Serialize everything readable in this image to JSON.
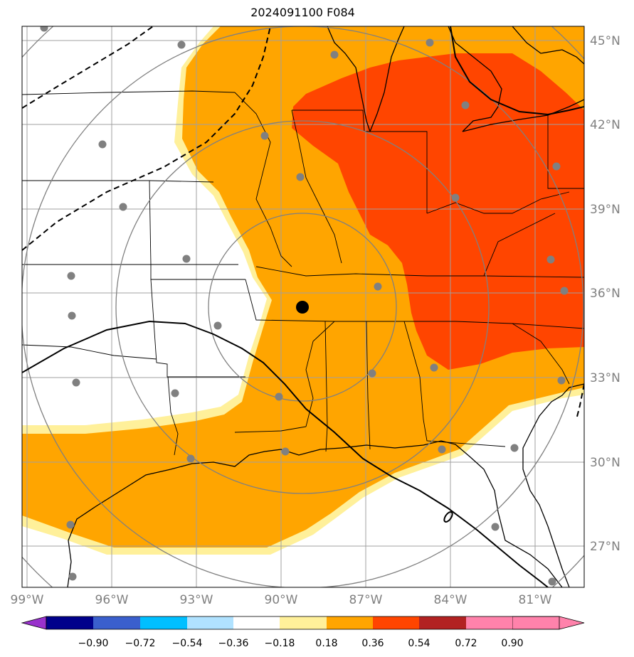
{
  "title": "2024091100 F084",
  "lat_labels": [
    "45°N",
    "42°N",
    "39°N",
    "36°N",
    "33°N",
    "30°N",
    "27°N"
  ],
  "lon_labels": [
    "99°W",
    "96°W",
    "93°W",
    "90°W",
    "87°W",
    "84°W",
    "81°W"
  ],
  "colorbar": {
    "tick_labels": [
      "−0.90",
      "−0.72",
      "−0.54",
      "−0.36",
      "−0.18",
      "0.18",
      "0.36",
      "0.54",
      "0.72",
      "0.90"
    ],
    "colors": [
      "#9932cc",
      "#00008b",
      "#3a5fcd",
      "#00bfff",
      "#b0e2ff",
      "#ffffff",
      "#fff09a",
      "#ffa500",
      "#ff4500",
      "#b22222",
      "#ff82ab"
    ]
  },
  "fill_colors": {
    "light": "#fff09a",
    "orange": "#ffa500",
    "red": "#ff4500"
  },
  "markers": {
    "center_color": "#000000",
    "station_color": "#808080"
  }
}
